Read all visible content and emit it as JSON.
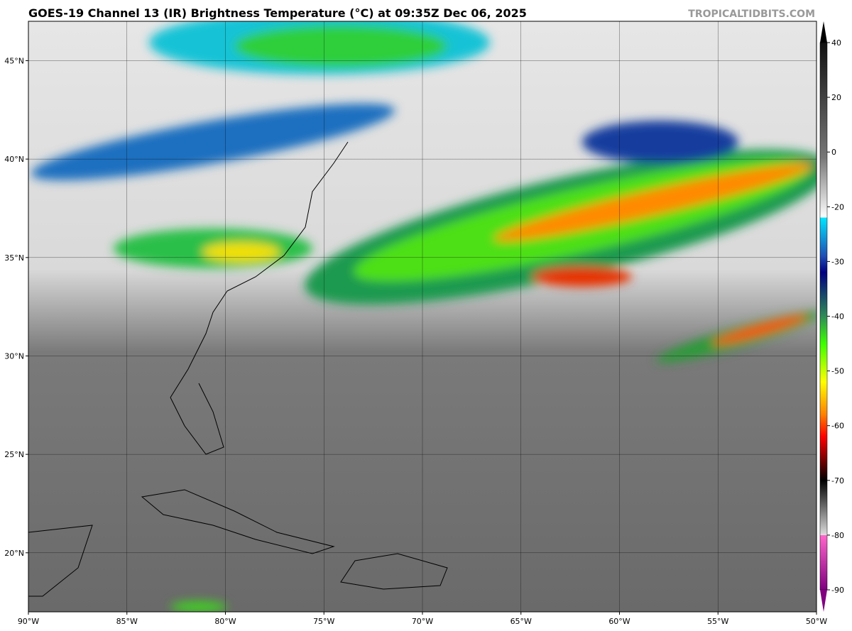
{
  "header": {
    "title": "GOES-19 Channel 13 (IR) Brightness Temperature (°C) at 09:35Z Dec 06, 2025",
    "credit": "TROPICALTIDBITS.COM"
  },
  "map": {
    "lon_range": [
      -90,
      -50
    ],
    "lat_range": [
      17,
      47
    ],
    "grid": true,
    "lon_ticks": [
      {
        "value": -90,
        "label": "90°W"
      },
      {
        "value": -85,
        "label": "85°W"
      },
      {
        "value": -80,
        "label": "80°W"
      },
      {
        "value": -75,
        "label": "75°W"
      },
      {
        "value": -70,
        "label": "70°W"
      },
      {
        "value": -65,
        "label": "65°W"
      },
      {
        "value": -60,
        "label": "60°W"
      },
      {
        "value": -55,
        "label": "55°W"
      },
      {
        "value": -50,
        "label": "50°W"
      }
    ],
    "lat_ticks": [
      {
        "value": 20,
        "label": "20°N"
      },
      {
        "value": 25,
        "label": "25°N"
      },
      {
        "value": 30,
        "label": "30°N"
      },
      {
        "value": 35,
        "label": "35°N"
      },
      {
        "value": 40,
        "label": "40°N"
      },
      {
        "value": 45,
        "label": "45°N"
      }
    ]
  },
  "colorbar": {
    "ticks": [
      40,
      20,
      0,
      -20,
      -30,
      -40,
      -50,
      -60,
      -70,
      -80,
      -90
    ]
  }
}
